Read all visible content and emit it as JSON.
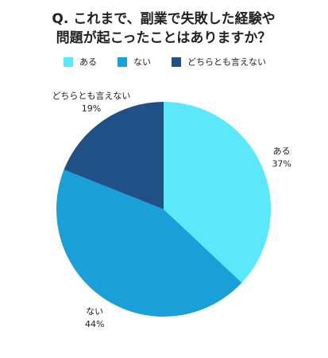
{
  "chart_data": {
    "type": "pie",
    "title": [
      "Q. これまで、副業で失敗した経験や",
      "問題が起こったことはありますか？"
    ],
    "categories": [
      "ある",
      "ない",
      "どちらとも言えない"
    ],
    "values": [
      37,
      44,
      19
    ],
    "value_labels": [
      "37%",
      "44%",
      "19%"
    ],
    "colors": [
      "#5ce8fb",
      "#1aa0d8",
      "#1f5187"
    ],
    "legend": "top"
  }
}
